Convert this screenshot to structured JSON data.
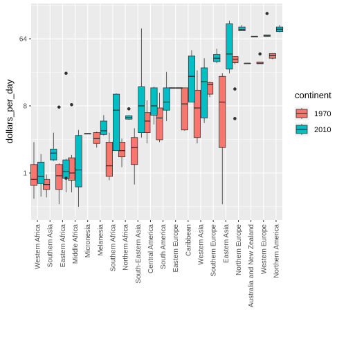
{
  "chart_data": {
    "type": "box",
    "ylabel": "dollars_per_day",
    "xlabel": "",
    "y_scale": "log2",
    "y_ticks": [
      1,
      8,
      64
    ],
    "ylim": [
      0.3,
      160
    ],
    "grid": true,
    "legend": {
      "title": "continent",
      "position": "right",
      "items": [
        "1970",
        "2010"
      ]
    },
    "colors": {
      "1970": "#F8766D",
      "2010": "#00BFC4"
    },
    "categories": [
      "Western Africa",
      "Southern Asia",
      "Eastern Africa",
      "Middle Africa",
      "Micronesia",
      "Melanesia",
      "Southern Africa",
      "Northern Africa",
      "South-Eastern Asia",
      "Central America",
      "South America",
      "Eastern Europe",
      "Caribbean",
      "Western Asia",
      "Southern Europe",
      "Eastern Asia",
      "Northern Europe",
      "Australia and New Zealand",
      "Western Europe",
      "Northern America"
    ],
    "series": [
      {
        "name": "1970",
        "boxes": [
          {
            "min": 0.45,
            "q1": 0.68,
            "median": 0.82,
            "q3": 1.3,
            "max": 2.6,
            "outliers": []
          },
          {
            "min": 0.47,
            "q1": 0.6,
            "median": 0.7,
            "q3": 0.82,
            "max": 0.95,
            "outliers": []
          },
          {
            "min": 0.38,
            "q1": 0.6,
            "median": 0.92,
            "q3": 1.3,
            "max": 1.35,
            "outliers": [
              7.7
            ]
          },
          {
            "min": 0.55,
            "q1": 0.8,
            "median": 1.0,
            "q3": 1.6,
            "max": 1.75,
            "outliers": [
              8.3
            ]
          },
          null,
          {
            "min": 2.2,
            "q1": 2.5,
            "median": 2.9,
            "q3": 3.5,
            "max": 3.6,
            "outliers": []
          },
          {
            "min": 0.8,
            "q1": 0.9,
            "median": 1.25,
            "q3": 2.6,
            "max": 3.5,
            "outliers": []
          },
          {
            "min": 1.2,
            "q1": 1.65,
            "median": 2.0,
            "q3": 2.6,
            "max": 2.9,
            "outliers": []
          },
          {
            "min": 0.7,
            "q1": 1.3,
            "median": 2.2,
            "q3": 3.0,
            "max": 4.0,
            "outliers": []
          },
          {
            "min": 2.5,
            "q1": 3.5,
            "median": 5.0,
            "q3": 6.5,
            "max": 9.5,
            "outliers": []
          },
          {
            "min": 2.6,
            "q1": 2.8,
            "median": 5.5,
            "q3": 7.5,
            "max": 12.0,
            "outliers": []
          },
          {
            "min": 14.0,
            "q1": 14.0,
            "median": 14.0,
            "q3": 14.0,
            "max": 14.0,
            "outliers": []
          },
          {
            "min": 3.7,
            "q1": 3.8,
            "median": 8.5,
            "q3": 14.0,
            "max": 14.0,
            "outliers": []
          },
          {
            "min": 2.5,
            "q1": 3.0,
            "median": 7.5,
            "q3": 13.0,
            "max": 24.0,
            "outliers": []
          },
          {
            "min": 10.5,
            "q1": 11.5,
            "median": 15.5,
            "q3": 16.5,
            "max": 17.0,
            "outliers": []
          },
          {
            "min": 0.38,
            "q1": 2.2,
            "median": 9.0,
            "q3": 20.0,
            "max": 22.0,
            "outliers": []
          },
          {
            "min": 29.0,
            "q1": 30.5,
            "median": 34.0,
            "q3": 37.0,
            "max": 37.5,
            "outliers": [
              13.5,
              5.4
            ]
          },
          {
            "min": 30.0,
            "q1": 30.0,
            "median": 30.0,
            "q3": 30.0,
            "max": 30.0,
            "outliers": []
          },
          {
            "min": 29.5,
            "q1": 29.5,
            "median": 30.0,
            "q3": 31.0,
            "max": 31.0,
            "outliers": [
              40.0
            ]
          },
          {
            "min": 34.0,
            "q1": 35.0,
            "median": 38.0,
            "q3": 40.5,
            "max": 41.0,
            "outliers": []
          }
        ]
      },
      {
        "name": "2010",
        "boxes": [
          {
            "min": 0.48,
            "q1": 0.72,
            "median": 0.9,
            "q3": 1.4,
            "max": 1.8,
            "outliers": []
          },
          {
            "min": 1.45,
            "q1": 1.5,
            "median": 1.85,
            "q3": 2.1,
            "max": 3.5,
            "outliers": []
          },
          {
            "min": 0.55,
            "q1": 0.85,
            "median": 1.05,
            "q3": 1.5,
            "max": 1.55,
            "outliers": [
              0.85,
              22.0
            ]
          },
          {
            "min": 0.35,
            "q1": 0.65,
            "median": 1.1,
            "q3": 3.2,
            "max": 3.8,
            "outliers": []
          },
          {
            "min": 3.4,
            "q1": 3.4,
            "median": 3.4,
            "q3": 3.4,
            "max": 3.4,
            "outliers": []
          },
          {
            "min": 3.2,
            "q1": 3.3,
            "median": 3.7,
            "q3": 5.0,
            "max": 6.0,
            "outliers": []
          },
          {
            "min": 2.0,
            "q1": 2.0,
            "median": 7.0,
            "q3": 11.5,
            "max": 11.8,
            "outliers": []
          },
          {
            "min": 5.2,
            "q1": 5.3,
            "median": 5.6,
            "q3": 5.9,
            "max": 6.0,
            "outliers": [
              7.3
            ]
          },
          {
            "min": 3.0,
            "q1": 3.5,
            "median": 8.0,
            "q3": 14.5,
            "max": 88.0,
            "outliers": []
          },
          {
            "min": 4.5,
            "q1": 6.0,
            "median": 8.0,
            "q3": 14.0,
            "max": 14.5,
            "outliers": []
          },
          {
            "min": 5.0,
            "q1": 7.0,
            "median": 9.0,
            "q3": 14.0,
            "max": 23.0,
            "outliers": []
          },
          {
            "min": 14.0,
            "q1": 14.0,
            "median": 14.0,
            "q3": 14.0,
            "max": 14.0,
            "outliers": []
          },
          {
            "min": 9.0,
            "q1": 9.0,
            "median": 20.0,
            "q3": 37.5,
            "max": 45.0,
            "outliers": []
          },
          {
            "min": 4.7,
            "q1": 5.5,
            "median": 17.0,
            "q3": 26.0,
            "max": 35.0,
            "outliers": []
          },
          {
            "min": 30.0,
            "q1": 31.5,
            "median": 35.0,
            "q3": 39.5,
            "max": 47.0,
            "outliers": []
          },
          {
            "min": 22.0,
            "q1": 25.0,
            "median": 40.0,
            "q3": 102.0,
            "max": 112.0,
            "outliers": []
          },
          {
            "min": 82.0,
            "q1": 82.0,
            "median": 85.0,
            "q3": 92.0,
            "max": 98.0,
            "outliers": []
          },
          {
            "min": 69.0,
            "q1": 69.0,
            "median": 69.0,
            "q3": 69.0,
            "max": 69.0,
            "outliers": []
          },
          {
            "min": 69.0,
            "q1": 69.0,
            "median": 70.0,
            "q3": 72.0,
            "max": 72.0,
            "outliers": [
              140.0
            ]
          },
          {
            "min": 78.0,
            "q1": 80.0,
            "median": 86.0,
            "q3": 92.0,
            "max": 98.0,
            "outliers": []
          }
        ]
      }
    ]
  }
}
